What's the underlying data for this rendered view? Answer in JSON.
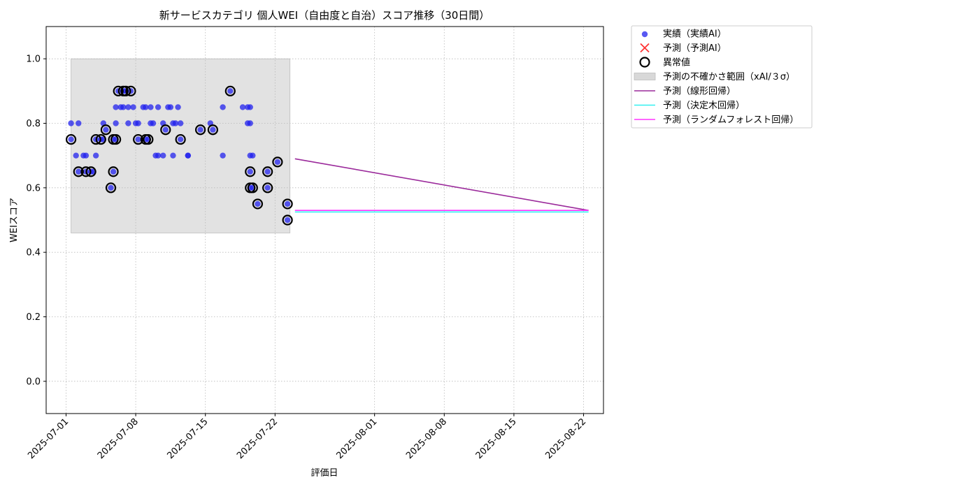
{
  "chart_data": {
    "type": "scatter",
    "title": "新サービスカテゴリ 個人WEI（自由度と自治）スコア推移（30日間）",
    "xlabel": "評価日",
    "ylabel": "WEIスコア",
    "xlim": [
      "2025-06-29",
      "2025-08-24"
    ],
    "ylim": [
      -0.1,
      1.1
    ],
    "x_ticks": [
      "2025-07-01",
      "2025-07-08",
      "2025-07-15",
      "2025-07-22",
      "2025-08-01",
      "2025-08-08",
      "2025-08-15",
      "2025-08-22"
    ],
    "y_ticks": [
      "0.0",
      "0.2",
      "0.4",
      "0.6",
      "0.8",
      "1.0"
    ],
    "grid": true,
    "legend_position": "outside-right",
    "legend": [
      {
        "label": "実績（実績AI）",
        "kind": "dot",
        "color": "#2222ee"
      },
      {
        "label": "予測（予測AI）",
        "kind": "x",
        "color": "#ff3333"
      },
      {
        "label": "異常値",
        "kind": "ring",
        "color": "#000000"
      },
      {
        "label": "予測の不確かさ範囲（xAI/３σ）",
        "kind": "patch",
        "color": "#d8d8d8"
      },
      {
        "label": "予測（線形回帰）",
        "kind": "line",
        "color": "#9b2a9b"
      },
      {
        "label": "予測（決定木回帰）",
        "kind": "line",
        "color": "#33f0f0"
      },
      {
        "label": "予測（ランダムフォレスト回帰）",
        "kind": "line",
        "color": "#ff33ff"
      }
    ],
    "uncertainty_band": {
      "x": [
        "2025-07-01 12:00",
        "2025-07-23 12:00"
      ],
      "y": [
        0.46,
        1.0
      ],
      "color": "#d8d8d8"
    },
    "actual": [
      [
        "2025-07-01 12:00",
        0.8
      ],
      [
        "2025-07-01 12:00",
        0.75
      ],
      [
        "2025-07-02 00:00",
        0.7
      ],
      [
        "2025-07-02 06:00",
        0.65
      ],
      [
        "2025-07-02 06:00",
        0.8
      ],
      [
        "2025-07-02 18:00",
        0.7
      ],
      [
        "2025-07-03 00:00",
        0.7
      ],
      [
        "2025-07-03 00:00",
        0.65
      ],
      [
        "2025-07-03 12:00",
        0.65
      ],
      [
        "2025-07-03 18:00",
        0.65
      ],
      [
        "2025-07-04 00:00",
        0.7
      ],
      [
        "2025-07-04 00:00",
        0.75
      ],
      [
        "2025-07-04 12:00",
        0.75
      ],
      [
        "2025-07-04 18:00",
        0.75
      ],
      [
        "2025-07-04 18:00",
        0.8
      ],
      [
        "2025-07-05 00:00",
        0.78
      ],
      [
        "2025-07-05 12:00",
        0.6
      ],
      [
        "2025-07-05 18:00",
        0.65
      ],
      [
        "2025-07-05 18:00",
        0.75
      ],
      [
        "2025-07-06 00:00",
        0.8
      ],
      [
        "2025-07-06 00:00",
        0.75
      ],
      [
        "2025-07-06 00:00",
        0.85
      ],
      [
        "2025-07-06 06:00",
        0.9
      ],
      [
        "2025-07-06 12:00",
        0.85
      ],
      [
        "2025-07-06 18:00",
        0.85
      ],
      [
        "2025-07-06 18:00",
        0.9
      ],
      [
        "2025-07-07 00:00",
        0.9
      ],
      [
        "2025-07-07 06:00",
        0.85
      ],
      [
        "2025-07-07 06:00",
        0.8
      ],
      [
        "2025-07-07 12:00",
        0.9
      ],
      [
        "2025-07-07 18:00",
        0.85
      ],
      [
        "2025-07-08 00:00",
        0.8
      ],
      [
        "2025-07-08 06:00",
        0.8
      ],
      [
        "2025-07-08 06:00",
        0.75
      ],
      [
        "2025-07-08 18:00",
        0.85
      ],
      [
        "2025-07-09 00:00",
        0.75
      ],
      [
        "2025-07-09 00:00",
        0.85
      ],
      [
        "2025-07-09 06:00",
        0.75
      ],
      [
        "2025-07-09 12:00",
        0.85
      ],
      [
        "2025-07-09 12:00",
        0.8
      ],
      [
        "2025-07-09 18:00",
        0.8
      ],
      [
        "2025-07-10 00:00",
        0.7
      ],
      [
        "2025-07-10 06:00",
        0.7
      ],
      [
        "2025-07-10 06:00",
        0.85
      ],
      [
        "2025-07-10 18:00",
        0.8
      ],
      [
        "2025-07-10 18:00",
        0.7
      ],
      [
        "2025-07-11 00:00",
        0.78
      ],
      [
        "2025-07-11 06:00",
        0.85
      ],
      [
        "2025-07-11 12:00",
        0.85
      ],
      [
        "2025-07-11 18:00",
        0.8
      ],
      [
        "2025-07-11 18:00",
        0.7
      ],
      [
        "2025-07-12 00:00",
        0.8
      ],
      [
        "2025-07-12 06:00",
        0.85
      ],
      [
        "2025-07-12 12:00",
        0.75
      ],
      [
        "2025-07-12 12:00",
        0.8
      ],
      [
        "2025-07-13 06:00",
        0.7
      ],
      [
        "2025-07-13 06:00",
        0.7
      ],
      [
        "2025-07-14 12:00",
        0.78
      ],
      [
        "2025-07-15 12:00",
        0.8
      ],
      [
        "2025-07-15 18:00",
        0.78
      ],
      [
        "2025-07-16 18:00",
        0.85
      ],
      [
        "2025-07-16 18:00",
        0.7
      ],
      [
        "2025-07-17 12:00",
        0.9
      ],
      [
        "2025-07-18 18:00",
        0.85
      ],
      [
        "2025-07-19 06:00",
        0.85
      ],
      [
        "2025-07-19 06:00",
        0.8
      ],
      [
        "2025-07-19 12:00",
        0.85
      ],
      [
        "2025-07-19 12:00",
        0.8
      ],
      [
        "2025-07-19 12:00",
        0.7
      ],
      [
        "2025-07-19 12:00",
        0.65
      ],
      [
        "2025-07-19 12:00",
        0.6
      ],
      [
        "2025-07-19 18:00",
        0.7
      ],
      [
        "2025-07-19 18:00",
        0.6
      ],
      [
        "2025-07-20 06:00",
        0.55
      ],
      [
        "2025-07-21 06:00",
        0.65
      ],
      [
        "2025-07-21 06:00",
        0.6
      ],
      [
        "2025-07-22 06:00",
        0.68
      ],
      [
        "2025-07-23 06:00",
        0.55
      ],
      [
        "2025-07-23 06:00",
        0.5
      ]
    ],
    "anomalies": [
      [
        "2025-07-01 12:00",
        0.75
      ],
      [
        "2025-07-02 06:00",
        0.65
      ],
      [
        "2025-07-03 00:00",
        0.65
      ],
      [
        "2025-07-03 12:00",
        0.65
      ],
      [
        "2025-07-04 00:00",
        0.75
      ],
      [
        "2025-07-04 12:00",
        0.75
      ],
      [
        "2025-07-05 00:00",
        0.78
      ],
      [
        "2025-07-05 12:00",
        0.6
      ],
      [
        "2025-07-05 18:00",
        0.65
      ],
      [
        "2025-07-05 18:00",
        0.75
      ],
      [
        "2025-07-06 00:00",
        0.75
      ],
      [
        "2025-07-06 06:00",
        0.9
      ],
      [
        "2025-07-06 18:00",
        0.9
      ],
      [
        "2025-07-07 00:00",
        0.9
      ],
      [
        "2025-07-07 12:00",
        0.9
      ],
      [
        "2025-07-08 06:00",
        0.75
      ],
      [
        "2025-07-09 00:00",
        0.75
      ],
      [
        "2025-07-09 06:00",
        0.75
      ],
      [
        "2025-07-11 00:00",
        0.78
      ],
      [
        "2025-07-12 12:00",
        0.75
      ],
      [
        "2025-07-14 12:00",
        0.78
      ],
      [
        "2025-07-15 18:00",
        0.78
      ],
      [
        "2025-07-17 12:00",
        0.9
      ],
      [
        "2025-07-19 12:00",
        0.65
      ],
      [
        "2025-07-19 12:00",
        0.6
      ],
      [
        "2025-07-19 18:00",
        0.6
      ],
      [
        "2025-07-20 06:00",
        0.55
      ],
      [
        "2025-07-21 06:00",
        0.65
      ],
      [
        "2025-07-21 06:00",
        0.6
      ],
      [
        "2025-07-22 06:00",
        0.68
      ],
      [
        "2025-07-23 06:00",
        0.55
      ],
      [
        "2025-07-23 06:00",
        0.5
      ]
    ],
    "forecast_lines": [
      {
        "name": "予測（線形回帰）",
        "color": "#9b2a9b",
        "x": [
          "2025-07-24",
          "2025-08-22 12:00"
        ],
        "y": [
          0.69,
          0.53
        ]
      },
      {
        "name": "予測（決定木回帰）",
        "color": "#33f0f0",
        "x": [
          "2025-07-24",
          "2025-08-22 12:00"
        ],
        "y": [
          0.525,
          0.525
        ]
      },
      {
        "name": "予測（ランダムフォレスト回帰）",
        "color": "#ff33ff",
        "x": [
          "2025-07-24",
          "2025-08-22 12:00"
        ],
        "y": [
          0.53,
          0.53
        ]
      }
    ]
  }
}
